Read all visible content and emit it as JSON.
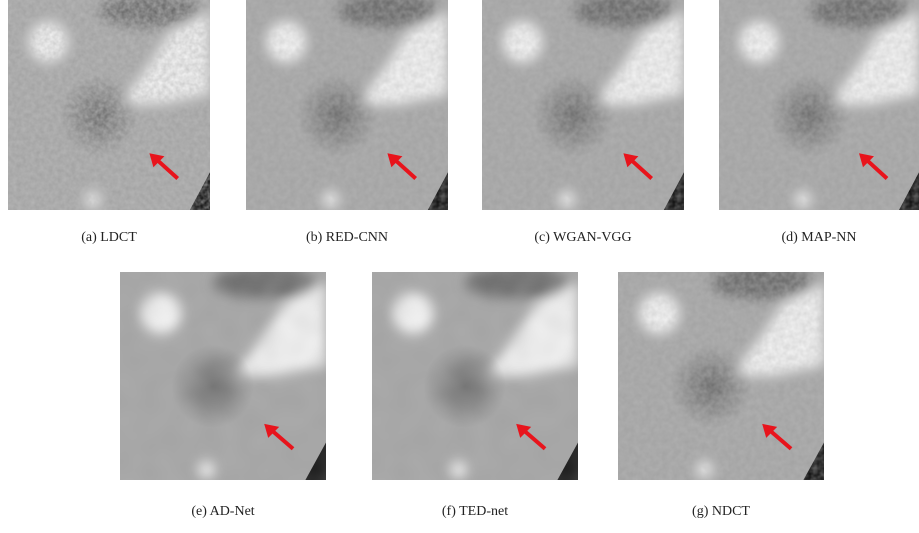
{
  "panels": [
    {
      "caption": "(a) LDCT"
    },
    {
      "caption": "(b) RED-CNN"
    },
    {
      "caption": "(c) WGAN-VGG"
    },
    {
      "caption": "(d) MAP-NN"
    },
    {
      "caption": "(e) AD-Net"
    },
    {
      "caption": "(f) TED-net"
    },
    {
      "caption": "(g) NDCT"
    }
  ]
}
